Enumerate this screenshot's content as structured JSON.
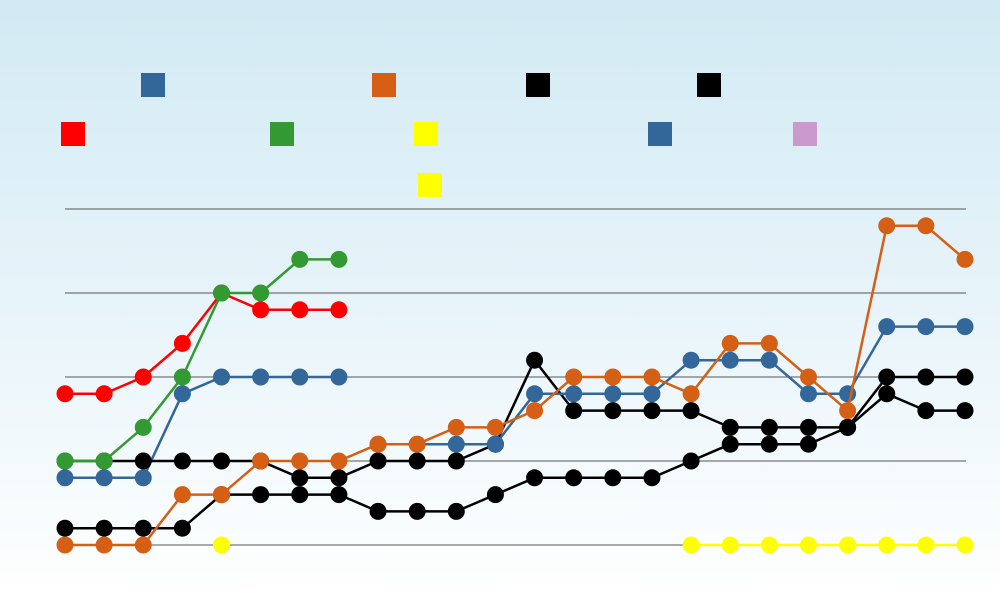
{
  "chart_data": {
    "type": "line",
    "title": "",
    "xlabel": "",
    "ylabel": "",
    "grid": true,
    "legend_position": "top",
    "x": [
      1,
      2,
      3,
      4,
      5,
      6,
      7,
      8,
      9,
      10,
      11,
      12,
      13,
      14,
      15,
      16,
      17,
      18,
      19,
      20,
      21,
      22,
      23,
      24
    ],
    "y_gridlines": [
      0,
      1,
      2,
      3,
      4
    ],
    "ylim": [
      -0.2,
      4.3
    ],
    "series": [
      {
        "color": "#336699",
        "values": [
          0.8,
          0.8,
          0.8,
          1.8,
          2.0,
          2.0,
          2.0,
          2.0,
          null,
          null,
          null,
          null,
          null,
          null,
          null,
          null,
          null,
          null,
          null,
          null,
          null,
          null,
          null,
          null
        ]
      },
      {
        "color": "#d45f15",
        "values": [
          null,
          null,
          null,
          null,
          null,
          null,
          null,
          null,
          null,
          null,
          null,
          null,
          null,
          null,
          null,
          null,
          null,
          null,
          null,
          null,
          null,
          null,
          null,
          null
        ]
      },
      {
        "color": "#000000",
        "values": [
          0.2,
          0.2,
          0.2,
          0.2,
          0.6,
          0.6,
          0.6,
          0.6,
          0.4,
          0.4,
          0.4,
          0.6,
          0.8,
          0.8,
          0.8,
          0.8,
          1.0,
          1.2,
          1.2,
          1.2,
          1.4,
          2.0,
          2.0,
          2.0
        ]
      },
      {
        "color": "#000000",
        "values": [
          1.0,
          1.0,
          1.0,
          1.0,
          1.0,
          1.0,
          0.8,
          0.8,
          1.0,
          1.0,
          1.0,
          1.2,
          2.2,
          1.6,
          1.6,
          1.6,
          1.6,
          1.4,
          1.4,
          1.4,
          1.4,
          1.8,
          1.6,
          1.6
        ]
      },
      {
        "color": "#ff0000",
        "values": [
          1.8,
          1.8,
          2.0,
          2.4,
          3.0,
          2.8,
          2.8,
          2.8,
          null,
          null,
          null,
          null,
          null,
          null,
          null,
          null,
          null,
          null,
          null,
          null,
          null,
          null,
          null,
          null
        ]
      },
      {
        "color": "#339933",
        "values": [
          1.0,
          1.0,
          1.4,
          2.0,
          3.0,
          3.0,
          3.4,
          3.4,
          null,
          null,
          null,
          null,
          null,
          null,
          null,
          null,
          null,
          null,
          null,
          null,
          null,
          null,
          null,
          null
        ]
      },
      {
        "color": "#ffff00",
        "values": [
          null,
          null,
          null,
          null,
          0.0,
          null,
          null,
          null,
          null,
          null,
          null,
          null,
          null,
          null,
          null,
          null,
          0.0,
          0.0,
          0.0,
          0.0,
          0.0,
          0.0,
          0.0,
          0.0
        ]
      },
      {
        "color": "#336699",
        "values": [
          null,
          null,
          null,
          null,
          null,
          null,
          null,
          null,
          1.2,
          1.2,
          1.2,
          1.2,
          1.8,
          1.8,
          1.8,
          1.8,
          2.2,
          2.2,
          2.2,
          1.8,
          1.8,
          2.6,
          2.6,
          2.6
        ]
      },
      {
        "color": "#cc99cc",
        "values": [
          null,
          null,
          null,
          null,
          null,
          null,
          null,
          null,
          null,
          null,
          null,
          null,
          null,
          null,
          null,
          null,
          null,
          null,
          null,
          null,
          null,
          null,
          null,
          null
        ]
      },
      {
        "color": "#ffff00",
        "values": [
          null,
          null,
          null,
          null,
          null,
          null,
          null,
          null,
          null,
          null,
          null,
          null,
          null,
          null,
          null,
          null,
          null,
          null,
          null,
          null,
          null,
          null,
          null,
          null
        ]
      },
      {
        "color": "#d45f15",
        "values": [
          0.0,
          0.0,
          0.0,
          0.6,
          0.6,
          1.0,
          1.0,
          1.0,
          1.2,
          1.2,
          1.4,
          1.4,
          1.6,
          2.0,
          2.0,
          2.0,
          1.8,
          2.4,
          2.4,
          2.0,
          1.6,
          3.8,
          3.8,
          3.4
        ]
      }
    ]
  }
}
